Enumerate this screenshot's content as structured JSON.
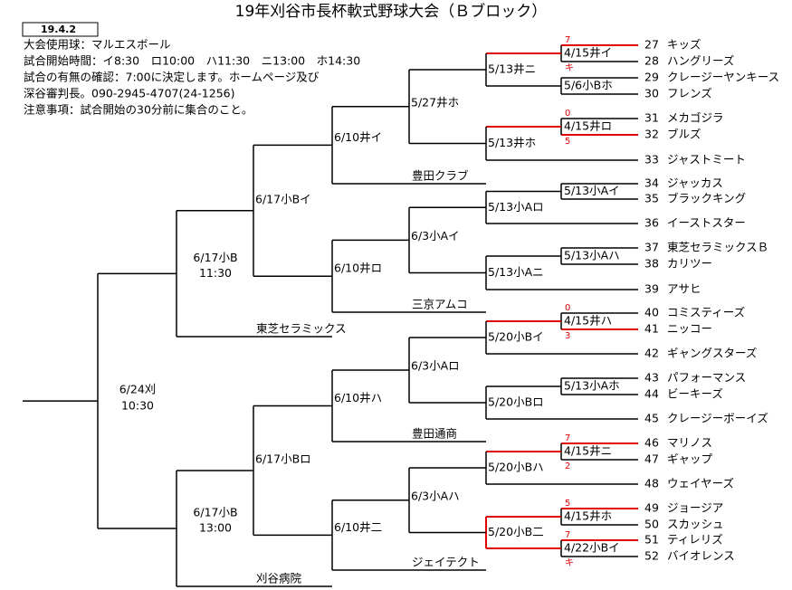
{
  "header": {
    "date": "19.4.2",
    "title": "19年刈谷市長杯軟式野球大会（Ｂブロック）",
    "notes": [
      "大会使用球：マルエスボール",
      "試合開始時間：イ8:30　ロ10:00　ハ11:30　ニ13:00　ホ14:30",
      "試合の有無の確認：7:00に決定します。ホームページ及び",
      "深谷審判長。090-2945-4707(24-1256)",
      "注意事項：試合開始の30分前に集合のこと。"
    ]
  },
  "teams": [
    {
      "no": 27,
      "name": "キッズ"
    },
    {
      "no": 28,
      "name": "ハングリーズ"
    },
    {
      "no": 29,
      "name": "クレージーヤンキース"
    },
    {
      "no": 30,
      "name": "フレンズ"
    },
    {
      "no": 31,
      "name": "メカゴジラ"
    },
    {
      "no": 32,
      "name": "ブルズ"
    },
    {
      "no": 33,
      "name": "ジャストミート"
    },
    {
      "no": 34,
      "name": "ジャッカス"
    },
    {
      "no": 35,
      "name": "ブラックキング"
    },
    {
      "no": 36,
      "name": "イーストスター"
    },
    {
      "no": 37,
      "name": "東芝セラミックスＢ"
    },
    {
      "no": 38,
      "name": "カリツー"
    },
    {
      "no": 39,
      "name": "アサヒ"
    },
    {
      "no": 40,
      "name": "コミスティーズ"
    },
    {
      "no": 41,
      "name": "ニッコー"
    },
    {
      "no": 42,
      "name": "ギャングスターズ"
    },
    {
      "no": 43,
      "name": "パフォーマンス"
    },
    {
      "no": 44,
      "name": "ビーキーズ"
    },
    {
      "no": 45,
      "name": "クレージーボーイズ"
    },
    {
      "no": 46,
      "name": "マリノス"
    },
    {
      "no": 47,
      "name": "ギャップ"
    },
    {
      "no": 48,
      "name": "ウェイヤーズ"
    },
    {
      "no": 49,
      "name": "ジョージア"
    },
    {
      "no": 50,
      "name": "スカッシュ"
    },
    {
      "no": 51,
      "name": "ティレリズ"
    },
    {
      "no": 52,
      "name": "バイオレンス"
    }
  ],
  "seeded_teams": [
    "豊田クラブ",
    "三京アムコ",
    "豊田通商",
    "ジェイテクト",
    "東芝セラミックス",
    "刈谷病院"
  ],
  "rounds": {
    "round1": [
      {
        "label": "4/15井イ",
        "score_top": "7",
        "score_bottom": "キ"
      },
      {
        "label": "5/6小Bホ"
      },
      {
        "label": "4/15井ロ",
        "score_top": "0",
        "score_bottom": "5"
      },
      {
        "label": "5/13小Aイ"
      },
      {
        "label": "5/13小Aハ"
      },
      {
        "label": "4/15井ハ",
        "score_top": "0",
        "score_bottom": "3"
      },
      {
        "label": "5/13小Aホ"
      },
      {
        "label": "4/15井ニ",
        "score_top": "7",
        "score_bottom": "2"
      },
      {
        "label": "4/15井ホ",
        "score_top": "5"
      },
      {
        "label": "4/22小Bイ",
        "score_top": "7",
        "score_bottom": "キ"
      }
    ],
    "round2": [
      {
        "label": "5/13井ニ"
      },
      {
        "label": "5/13井ホ"
      },
      {
        "label": "5/13小Aロ"
      },
      {
        "label": "5/13小Aニ"
      },
      {
        "label": "5/20小Bイ"
      },
      {
        "label": "5/20小Bロ"
      },
      {
        "label": "5/20小Bハ"
      },
      {
        "label": "5/20小B二"
      }
    ],
    "round3": [
      {
        "label": "5/27井ホ"
      },
      {
        "label": "6/3小Aイ"
      },
      {
        "label": "6/3小Aロ"
      },
      {
        "label": "6/3小Aハ"
      }
    ],
    "round4": [
      {
        "label": "6/10井イ"
      },
      {
        "label": "6/10井ロ"
      },
      {
        "label": "6/10井ハ"
      },
      {
        "label": "6/10井二"
      }
    ],
    "round5": [
      {
        "label": "6/17小Bイ"
      },
      {
        "label": "6/17小Bロ"
      }
    ],
    "round6": [
      {
        "label": "6/17小B",
        "time": "11:30"
      },
      {
        "label": "6/17小B",
        "time": "13:00"
      }
    ],
    "final": {
      "label": "6/24刈",
      "time": "10:30"
    }
  }
}
